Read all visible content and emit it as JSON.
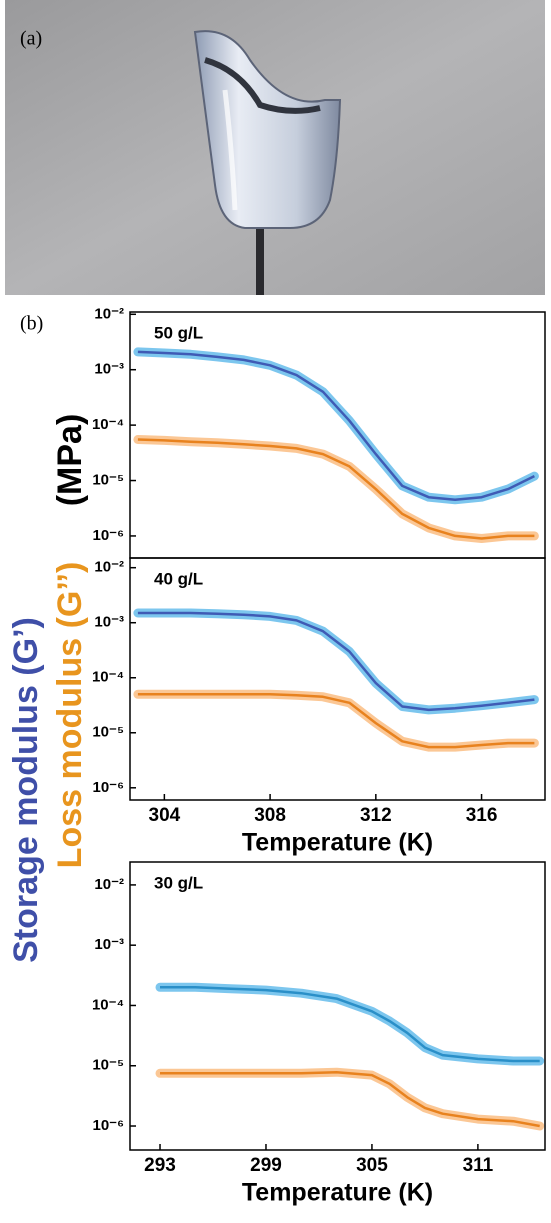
{
  "panel_labels": [
    "(a)",
    "(b)"
  ],
  "y_axis_label": {
    "storage": "Storage modulus (G’)",
    "loss": "Loss modulus (G’’)",
    "unit": "(MPa)"
  },
  "chart_data": [
    {
      "type": "line",
      "annotation": "50 g/L",
      "log_y": true,
      "x": [
        303,
        304,
        305,
        306,
        307,
        308,
        309,
        310,
        311,
        312,
        313,
        314,
        315,
        316,
        317,
        318
      ],
      "series": [
        {
          "name": "G'",
          "color": "#3f5bb5",
          "band_color": "#6ec0ec",
          "values": [
            0.0021,
            0.002,
            0.0019,
            0.0017,
            0.0015,
            0.0012,
            0.0008,
            0.0004,
            0.00012,
            3e-05,
            8e-06,
            5e-06,
            4.5e-06,
            5e-06,
            7e-06,
            1.2e-05
          ]
        },
        {
          "name": "G''",
          "color": "#e8821e",
          "band_color": "#fbc189",
          "values": [
            5.5e-05,
            5.3e-05,
            5e-05,
            4.8e-05,
            4.5e-05,
            4.2e-05,
            3.8e-05,
            3e-05,
            1.8e-05,
            7e-06,
            2.5e-06,
            1.4e-06,
            1e-06,
            9e-07,
            1e-06,
            1e-06
          ]
        }
      ],
      "xlim": [
        302.7,
        318.4
      ],
      "ylim": [
        4e-07,
        0.011
      ],
      "yticks": [
        {
          "value": 0.01,
          "label": "10⁻²"
        },
        {
          "value": 0.001,
          "label": "10⁻³"
        },
        {
          "value": 0.0001,
          "label": "10⁻⁴"
        },
        {
          "value": 1e-05,
          "label": "10⁻⁵"
        },
        {
          "value": 1e-06,
          "label": "10⁻⁶"
        }
      ]
    },
    {
      "type": "line",
      "annotation": "40 g/L",
      "log_y": true,
      "xlabel": "Temperature (K)",
      "x": [
        303,
        304,
        305,
        306,
        307,
        308,
        309,
        310,
        311,
        312,
        313,
        314,
        315,
        316,
        317,
        318
      ],
      "series": [
        {
          "name": "G'",
          "color": "#3f5bb5",
          "band_color": "#6ec0ec",
          "values": [
            0.0015,
            0.0015,
            0.0015,
            0.00145,
            0.0014,
            0.0013,
            0.0011,
            0.0007,
            0.0003,
            8e-05,
            3e-05,
            2.6e-05,
            2.8e-05,
            3.1e-05,
            3.5e-05,
            4e-05
          ]
        },
        {
          "name": "G''",
          "color": "#e8821e",
          "band_color": "#fbc189",
          "values": [
            5e-05,
            5e-05,
            5e-05,
            5e-05,
            5e-05,
            5e-05,
            4.8e-05,
            4.5e-05,
            3.5e-05,
            1.5e-05,
            7e-06,
            5.5e-06,
            5.5e-06,
            6e-06,
            6.5e-06,
            6.5e-06
          ]
        }
      ],
      "xlim": [
        302.7,
        318.4
      ],
      "ylim": [
        6e-07,
        0.015
      ],
      "xticks": [
        304,
        308,
        312,
        316
      ],
      "yticks": [
        {
          "value": 0.01,
          "label": "10⁻²"
        },
        {
          "value": 0.001,
          "label": "10⁻³"
        },
        {
          "value": 0.0001,
          "label": "10⁻⁴"
        },
        {
          "value": 1e-05,
          "label": "10⁻⁵"
        },
        {
          "value": 1e-06,
          "label": "10⁻⁶"
        }
      ]
    },
    {
      "type": "line",
      "annotation": "30 g/L",
      "log_y": true,
      "xlabel": "Temperature (K)",
      "x": [
        293,
        295,
        297,
        299,
        301,
        303,
        305,
        306,
        307,
        308,
        309,
        311,
        313,
        314.5
      ],
      "series": [
        {
          "name": "G'",
          "color": "#2a8fc8",
          "band_color": "#6ec0ec",
          "values": [
            0.0002,
            0.0002,
            0.00019,
            0.00018,
            0.00016,
            0.00013,
            8e-05,
            5.5e-05,
            3.5e-05,
            2e-05,
            1.5e-05,
            1.3e-05,
            1.2e-05,
            1.2e-05
          ]
        },
        {
          "name": "G''",
          "color": "#e8821e",
          "band_color": "#fbc189",
          "values": [
            7.5e-06,
            7.5e-06,
            7.5e-06,
            7.5e-06,
            7.5e-06,
            7.8e-06,
            7e-06,
            5e-06,
            3e-06,
            2e-06,
            1.6e-06,
            1.3e-06,
            1.2e-06,
            1e-06
          ]
        }
      ],
      "xlim": [
        291.3,
        314.8
      ],
      "ylim": [
        4e-07,
        0.024
      ],
      "xticks": [
        293,
        299,
        305,
        311
      ],
      "yticks": [
        {
          "value": 0.01,
          "label": "10⁻²"
        },
        {
          "value": 0.001,
          "label": "10⁻³"
        },
        {
          "value": 0.0001,
          "label": "10⁻⁴"
        },
        {
          "value": 1e-05,
          "label": "10⁻⁵"
        },
        {
          "value": 1e-06,
          "label": "10⁻⁶"
        }
      ]
    }
  ]
}
